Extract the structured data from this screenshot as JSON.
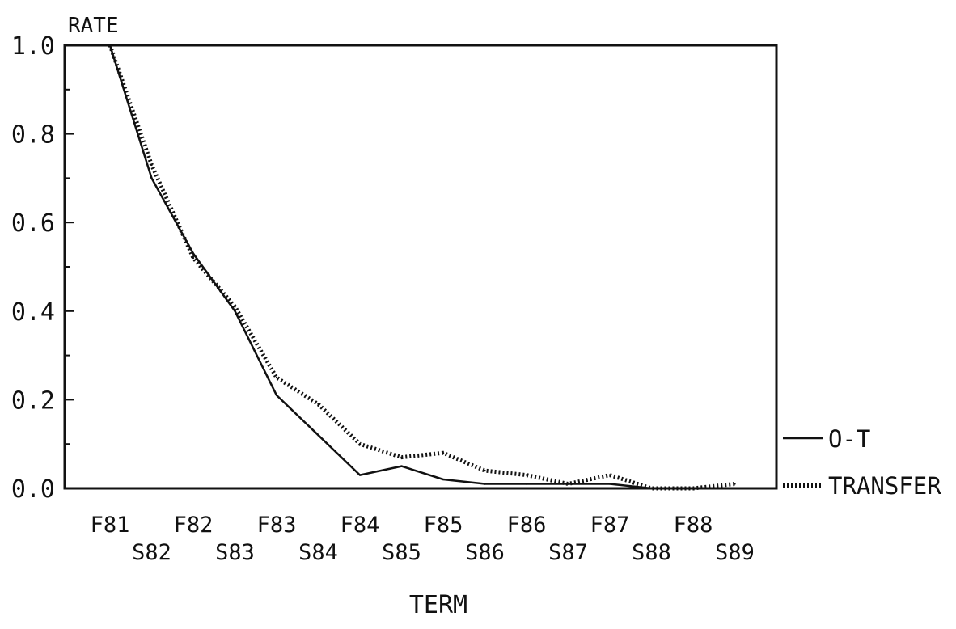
{
  "chart_data": {
    "type": "line",
    "ylabel": "RATE",
    "xlabel": "TERM",
    "ylim": [
      0.0,
      1.0
    ],
    "yticks": [
      "0.0",
      "0.2",
      "0.4",
      "0.6",
      "0.8",
      "1.0"
    ],
    "categories": [
      "F81",
      "S82",
      "F82",
      "S83",
      "F83",
      "S84",
      "F84",
      "S85",
      "F85",
      "S86",
      "F86",
      "S87",
      "F87",
      "S88",
      "F88",
      "S89"
    ],
    "grid": false,
    "legend_position": "right",
    "series": [
      {
        "name": "O-T",
        "style": "solid",
        "values": [
          1.0,
          0.7,
          0.53,
          0.4,
          0.21,
          0.12,
          0.03,
          0.05,
          0.02,
          0.01,
          0.01,
          0.01,
          0.01,
          0.0,
          0.0,
          0.0
        ]
      },
      {
        "name": "TRANSFER",
        "style": "dotted",
        "values": [
          1.0,
          0.73,
          0.52,
          0.41,
          0.25,
          0.19,
          0.1,
          0.07,
          0.08,
          0.04,
          0.03,
          0.01,
          0.03,
          0.0,
          0.0,
          0.01
        ]
      }
    ]
  },
  "colors": {
    "ink": "#111111",
    "background": "#ffffff"
  }
}
